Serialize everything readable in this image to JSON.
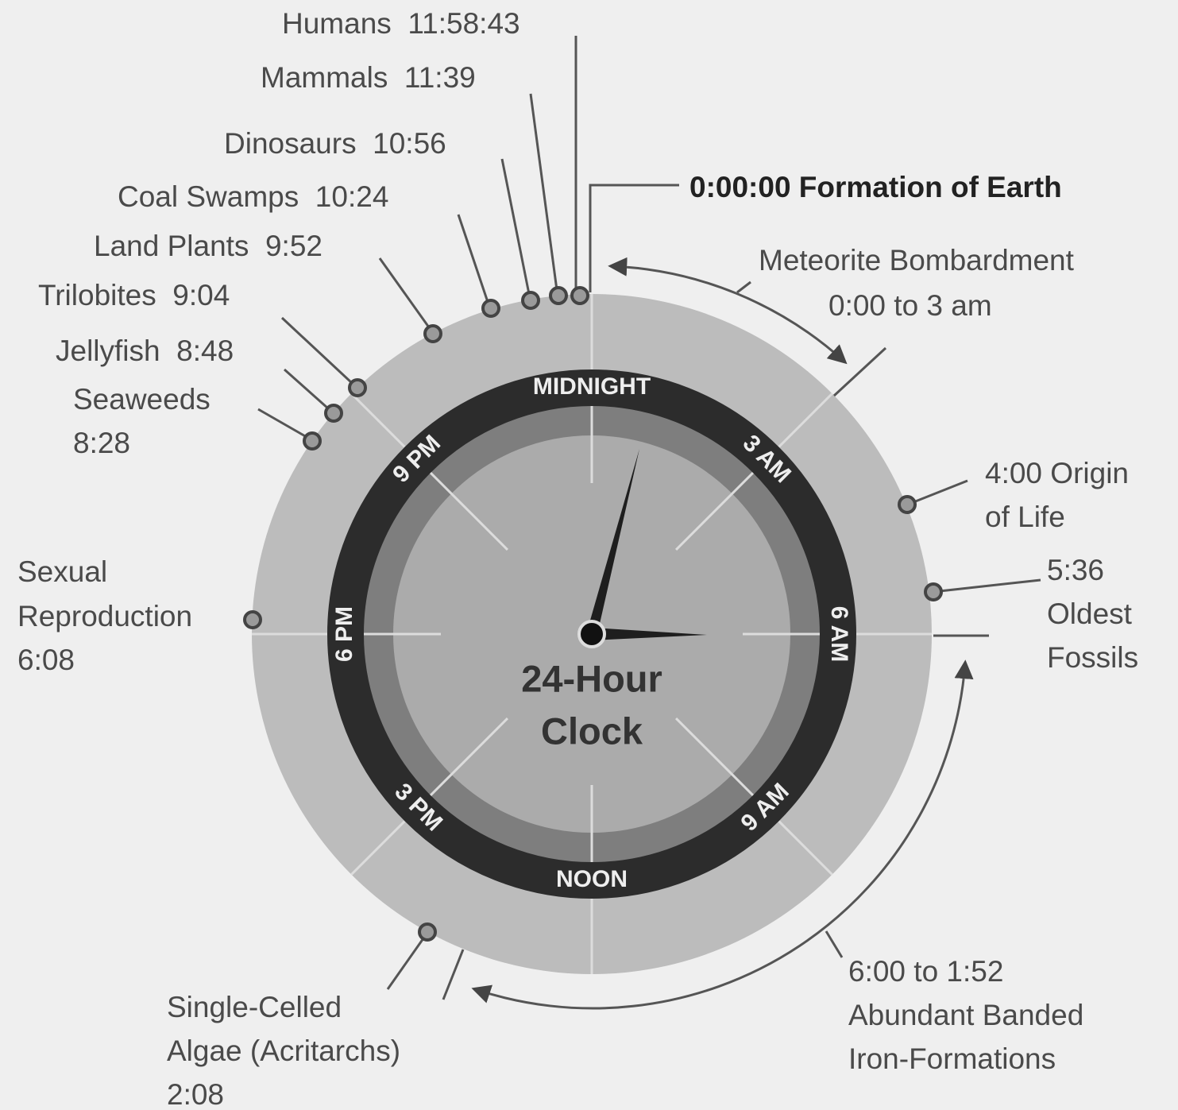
{
  "title": [
    "24-Hour",
    "Clock"
  ],
  "dial_labels": [
    "MIDNIGHT",
    "3 AM",
    "6 AM",
    "9 AM",
    "NOON",
    "3 PM",
    "6 PM",
    "9 PM"
  ],
  "events": [
    {
      "lines": [
        "Humans  11:58:43"
      ]
    },
    {
      "lines": [
        "Mammals  11:39"
      ]
    },
    {
      "lines": [
        "Dinosaurs  10:56"
      ]
    },
    {
      "lines": [
        "Coal Swamps  10:24"
      ]
    },
    {
      "lines": [
        "Land Plants  9:52"
      ]
    },
    {
      "lines": [
        "Trilobites  9:04"
      ]
    },
    {
      "lines": [
        "Jellyfish  8:48"
      ]
    },
    {
      "lines": [
        "Seaweeds",
        "8:28"
      ]
    },
    {
      "lines": [
        "0:00:00 Formation of Earth"
      ]
    },
    {
      "lines": [
        "Meteorite Bombardment",
        "0:00 to 3 am"
      ]
    },
    {
      "lines": [
        "4:00 Origin",
        "of Life"
      ]
    },
    {
      "lines": [
        "5:36",
        "Oldest",
        "Fossils"
      ]
    },
    {
      "lines": [
        "Sexual",
        "Reproduction",
        "6:08"
      ]
    },
    {
      "lines": [
        "Single-Celled",
        "Algae (Acritarchs)",
        "2:08"
      ]
    },
    {
      "lines": [
        "6:00 to 1:52",
        "Abundant Banded",
        "Iron-Formations"
      ]
    }
  ]
}
